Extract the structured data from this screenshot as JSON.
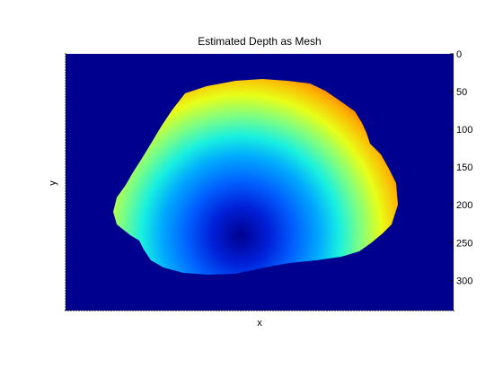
{
  "chart_data": {
    "type": "heatmap",
    "title": "Estimated Depth as Mesh",
    "xlabel": "x",
    "ylabel": "y",
    "ylim": [
      0,
      340
    ],
    "y_axis_side": "right",
    "y_reversed": true,
    "y_ticks": [
      0,
      50,
      100,
      150,
      200,
      250,
      300
    ],
    "y_tick_labels": [
      "0",
      "50",
      "100",
      "150",
      "200",
      "250",
      "300"
    ],
    "x_tick_labels": [],
    "colormap": "jet",
    "background_color": "#00008f",
    "grid": false,
    "legend": "none",
    "depth_field": {
      "description": "smooth depth values over an egg-shaped region",
      "value_range": [
        0,
        1
      ],
      "gradient": "low (blue) near bottom center, high (red) along top edge"
    }
  }
}
